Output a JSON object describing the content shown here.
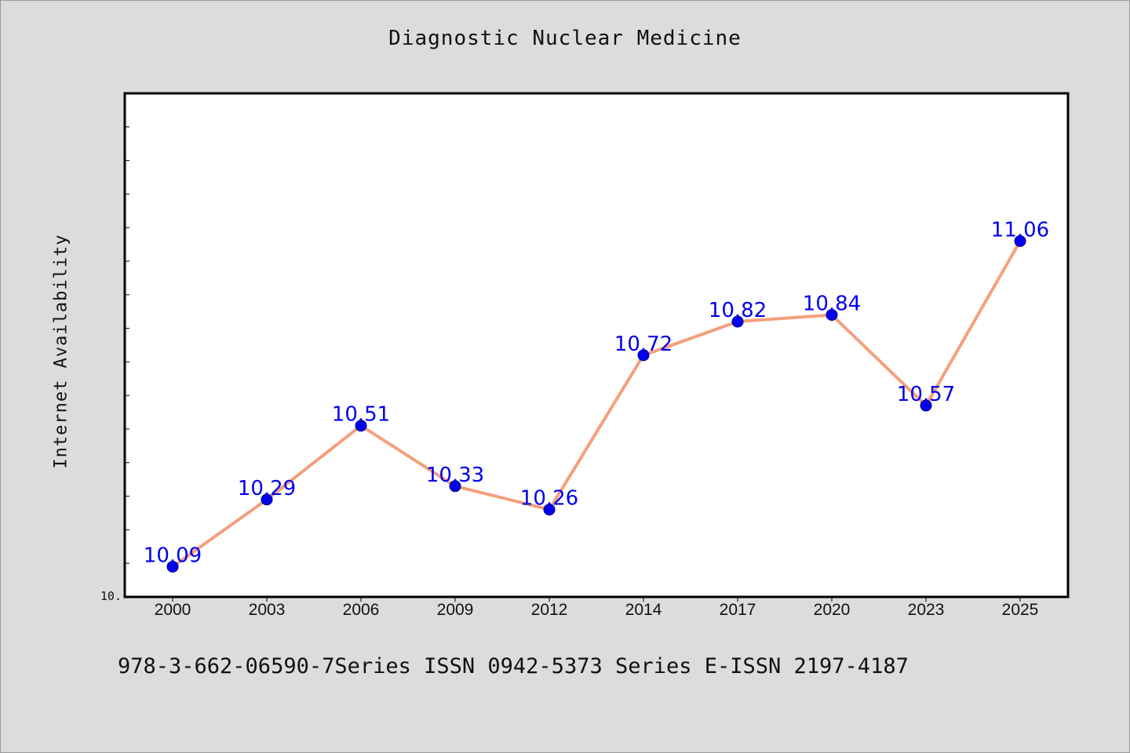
{
  "chart_data": {
    "type": "line",
    "title": "Diagnostic Nuclear Medicine",
    "xlabel": "",
    "ylabel": "Internet Availability",
    "categories": [
      "2000",
      "2003",
      "2006",
      "2009",
      "2012",
      "2014",
      "2017",
      "2020",
      "2023",
      "2025"
    ],
    "series": [
      {
        "values": [
          10.09,
          10.29,
          10.51,
          10.33,
          10.26,
          10.72,
          10.82,
          10.84,
          10.57,
          11.06
        ],
        "value_labels": [
          "10.09",
          "10.29",
          "10.51",
          "10.33",
          "10.26",
          "10.72",
          "10.82",
          "10.84",
          "10.57",
          "11.06"
        ],
        "line_color": "#f4a07c",
        "marker_color": "#0000ee"
      }
    ],
    "ylim": [
      10.0,
      11.5
    ],
    "y_tick_label": "10.",
    "grid": false,
    "label_color": "#0000ee",
    "footer": "978-3-662-06590-7Series ISSN 0942-5373 Series E-ISSN 2197-4187"
  }
}
